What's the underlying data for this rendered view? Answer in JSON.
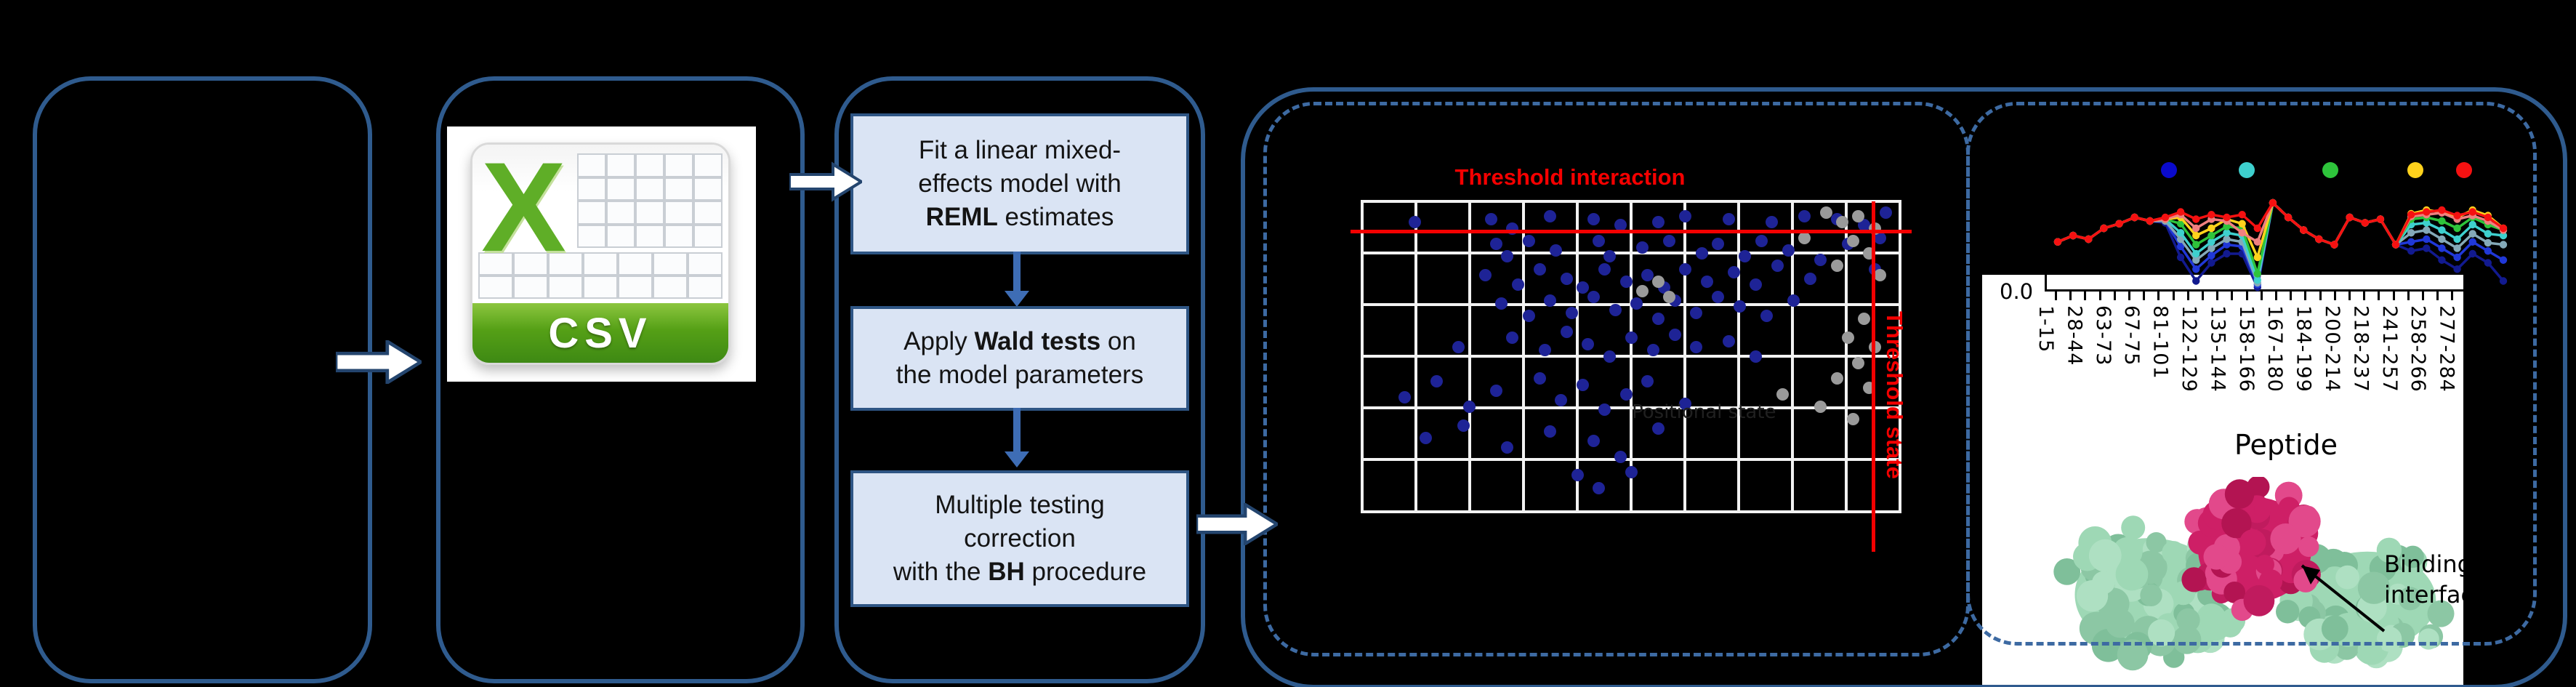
{
  "colors": {
    "panel_border": "#2F5B8E",
    "dashed_border": "#3D6AA2",
    "flow_box_fill": "#DAE4F4",
    "flow_box_border": "#2E5584",
    "flow_arrow": "#3E6DB5",
    "block_arrow_fill": "#FFFFFF",
    "block_arrow_stroke": "#24456E",
    "threshold_red": "#F40000",
    "csv_green": "#5FAE27",
    "protein_green": "#9ED8B5",
    "protein_core": "#CE1F66"
  },
  "csv_icon": {
    "letter": "X",
    "label": "CSV"
  },
  "flowchart": {
    "box1": {
      "l1": "Fit a linear mixed-",
      "l2": "effects model with",
      "l3_bold": "REML",
      "l3_rest": " estimates"
    },
    "box2": {
      "l1_pre": "Apply ",
      "l1_bold": "Wald tests",
      "l1_post": " on",
      "l2": "the model parameters"
    },
    "box3": {
      "l1": "Multiple testing",
      "l2": "correction",
      "l3_pre": "with the ",
      "l3_bold": "BH",
      "l3_post": " procedure"
    }
  },
  "protein_caption": {
    "line1": "Binding",
    "line2": "interface"
  },
  "chart_data": [
    {
      "type": "scatter",
      "title": "Threshold interaction",
      "vline_label": "Threshold state",
      "faint_label": "Positional state",
      "grid": {
        "v_lines": 11,
        "h_lines": 7,
        "grid_color": "#f2f2f2",
        "background": "#000000"
      },
      "threshold_interaction_y_pct": 10,
      "threshold_state_x_pct": 94.5,
      "series": [
        {
          "name": "interaction-points",
          "color": "#1E2396",
          "points": [
            [
              10,
              7
            ],
            [
              24,
              6
            ],
            [
              28,
              9
            ],
            [
              35,
              5
            ],
            [
              43,
              6
            ],
            [
              48,
              8
            ],
            [
              55,
              7
            ],
            [
              60,
              5
            ],
            [
              68,
              6
            ],
            [
              76,
              7
            ],
            [
              82,
              5
            ],
            [
              88,
              6
            ],
            [
              93,
              8
            ],
            [
              97,
              4
            ],
            [
              25,
              14
            ],
            [
              27,
              18
            ],
            [
              31,
              13
            ],
            [
              36,
              16
            ],
            [
              44,
              13
            ],
            [
              46,
              18
            ],
            [
              52,
              15
            ],
            [
              57,
              13
            ],
            [
              63,
              17
            ],
            [
              66,
              14
            ],
            [
              71,
              18
            ],
            [
              74,
              13
            ],
            [
              79,
              16
            ],
            [
              85,
              19
            ],
            [
              90,
              14
            ],
            [
              96,
              12
            ],
            [
              23,
              24
            ],
            [
              29,
              27
            ],
            [
              33,
              22
            ],
            [
              38,
              25
            ],
            [
              41,
              28
            ],
            [
              45,
              22
            ],
            [
              49,
              26
            ],
            [
              53,
              24
            ],
            [
              56,
              28
            ],
            [
              60,
              22
            ],
            [
              64,
              26
            ],
            [
              69,
              23
            ],
            [
              73,
              27
            ],
            [
              77,
              21
            ],
            [
              83,
              25
            ],
            [
              95,
              22
            ],
            [
              26,
              33
            ],
            [
              31,
              37
            ],
            [
              35,
              32
            ],
            [
              39,
              36
            ],
            [
              43,
              31
            ],
            [
              47,
              35
            ],
            [
              51,
              33
            ],
            [
              55,
              38
            ],
            [
              58,
              32
            ],
            [
              62,
              36
            ],
            [
              66,
              31
            ],
            [
              70,
              34
            ],
            [
              75,
              37
            ],
            [
              80,
              32
            ],
            [
              18,
              47
            ],
            [
              28,
              44
            ],
            [
              34,
              48
            ],
            [
              38,
              42
            ],
            [
              42,
              46
            ],
            [
              46,
              50
            ],
            [
              50,
              44
            ],
            [
              54,
              48
            ],
            [
              58,
              43
            ],
            [
              62,
              47
            ],
            [
              68,
              45
            ],
            [
              73,
              50
            ],
            [
              8,
              63
            ],
            [
              14,
              58
            ],
            [
              20,
              66
            ],
            [
              25,
              61
            ],
            [
              33,
              57
            ],
            [
              37,
              64
            ],
            [
              41,
              59
            ],
            [
              45,
              67
            ],
            [
              49,
              62
            ],
            [
              53,
              58
            ],
            [
              60,
              65
            ],
            [
              12,
              76
            ],
            [
              19,
              72
            ],
            [
              27,
              79
            ],
            [
              35,
              74
            ],
            [
              43,
              77
            ],
            [
              48,
              82
            ],
            [
              55,
              73
            ],
            [
              40,
              88
            ],
            [
              44,
              92
            ],
            [
              50,
              87
            ]
          ]
        },
        {
          "name": "state-points",
          "color": "#9A9A9A",
          "points": [
            [
              86,
              4
            ],
            [
              89,
              7
            ],
            [
              92,
              5
            ],
            [
              95,
              9
            ],
            [
              82,
              12
            ],
            [
              91,
              13
            ],
            [
              94,
              17
            ],
            [
              88,
              21
            ],
            [
              96,
              24
            ],
            [
              55,
              26
            ],
            [
              57,
              31
            ],
            [
              52,
              29
            ],
            [
              93,
              38
            ],
            [
              90,
              44
            ],
            [
              95,
              47
            ],
            [
              92,
              52
            ],
            [
              88,
              57
            ],
            [
              94,
              60
            ],
            [
              78,
              62
            ],
            [
              85,
              66
            ],
            [
              91,
              70
            ]
          ]
        }
      ]
    },
    {
      "type": "line",
      "x_title": "Peptide",
      "y_tick_label": "0.0",
      "x_labels": [
        "1-15",
        "28-44",
        "63-73",
        "67-75",
        "81-101",
        "122-129",
        "135-144",
        "158-166",
        "167-180",
        "184-199",
        "200-214",
        "218-237",
        "241-257",
        "258-266",
        "277-284"
      ],
      "legend_dot_colors": [
        "#0A0ACC",
        "#3ED0CE",
        "#2EC43B",
        "#FFD21C",
        "#F51111"
      ],
      "series": [
        {
          "name": "navy",
          "color": "#121A8F",
          "values": [
            0.55,
            0.48,
            0.52,
            0.4,
            0.35,
            0.28,
            0.32,
            0.34,
            0.72,
            0.98,
            0.78,
            0.68,
            0.68,
            1.05,
            0.12,
            0.28,
            0.42,
            0.52,
            0.58,
            0.28,
            0.34,
            0.3,
            0.58,
            0.65,
            0.62,
            0.75,
            0.85,
            0.68,
            0.78,
            0.98
          ]
        },
        {
          "name": "blue",
          "color": "#2038D8",
          "values": [
            0.55,
            0.48,
            0.52,
            0.4,
            0.35,
            0.28,
            0.32,
            0.32,
            0.6,
            0.85,
            0.7,
            0.58,
            0.6,
            1.02,
            0.12,
            0.28,
            0.42,
            0.52,
            0.58,
            0.28,
            0.34,
            0.3,
            0.58,
            0.55,
            0.52,
            0.62,
            0.72,
            0.55,
            0.65,
            0.75
          ]
        },
        {
          "name": "cadet",
          "color": "#84A9B8",
          "values": [
            0.55,
            0.48,
            0.52,
            0.4,
            0.35,
            0.28,
            0.32,
            0.32,
            0.52,
            0.75,
            0.62,
            0.52,
            0.55,
            1.0,
            0.12,
            0.28,
            0.42,
            0.52,
            0.58,
            0.28,
            0.34,
            0.3,
            0.58,
            0.45,
            0.42,
            0.52,
            0.62,
            0.46,
            0.56,
            0.58
          ]
        },
        {
          "name": "turquoise",
          "color": "#3ED0CE",
          "values": [
            0.55,
            0.48,
            0.52,
            0.4,
            0.35,
            0.28,
            0.32,
            0.3,
            0.45,
            0.68,
            0.55,
            0.45,
            0.48,
            0.97,
            0.12,
            0.28,
            0.42,
            0.52,
            0.58,
            0.28,
            0.34,
            0.3,
            0.58,
            0.36,
            0.34,
            0.42,
            0.52,
            0.36,
            0.46,
            0.48
          ]
        },
        {
          "name": "green",
          "color": "#2EC43B",
          "values": [
            0.55,
            0.48,
            0.52,
            0.4,
            0.35,
            0.28,
            0.32,
            0.3,
            0.35,
            0.58,
            0.48,
            0.38,
            0.4,
            0.9,
            0.12,
            0.28,
            0.42,
            0.52,
            0.58,
            0.28,
            0.34,
            0.3,
            0.58,
            0.3,
            0.28,
            0.32,
            0.4,
            0.28,
            0.36,
            0.42
          ]
        },
        {
          "name": "yellow",
          "color": "#FFD21C",
          "values": [
            0.55,
            0.48,
            0.52,
            0.4,
            0.35,
            0.28,
            0.32,
            0.3,
            0.28,
            0.48,
            0.4,
            0.3,
            0.35,
            0.72,
            0.12,
            0.28,
            0.42,
            0.52,
            0.58,
            0.28,
            0.34,
            0.3,
            0.58,
            0.24,
            0.2,
            0.22,
            0.28,
            0.2,
            0.26,
            0.4
          ]
        },
        {
          "name": "salmon",
          "color": "#F08080",
          "values": [
            0.55,
            0.48,
            0.52,
            0.4,
            0.35,
            0.28,
            0.32,
            0.3,
            0.25,
            0.4,
            0.3,
            0.32,
            0.45,
            0.55,
            0.12,
            0.28,
            0.42,
            0.52,
            0.58,
            0.28,
            0.34,
            0.3,
            0.58,
            0.27,
            0.25,
            0.23,
            0.3,
            0.26,
            0.32,
            0.42
          ]
        },
        {
          "name": "red",
          "color": "#F51111",
          "values": [
            0.55,
            0.48,
            0.52,
            0.4,
            0.35,
            0.28,
            0.32,
            0.28,
            0.22,
            0.3,
            0.25,
            0.28,
            0.25,
            0.4,
            0.12,
            0.28,
            0.42,
            0.52,
            0.58,
            0.28,
            0.34,
            0.3,
            0.58,
            0.25,
            0.22,
            0.2,
            0.26,
            0.22,
            0.28,
            0.4
          ]
        }
      ]
    }
  ]
}
